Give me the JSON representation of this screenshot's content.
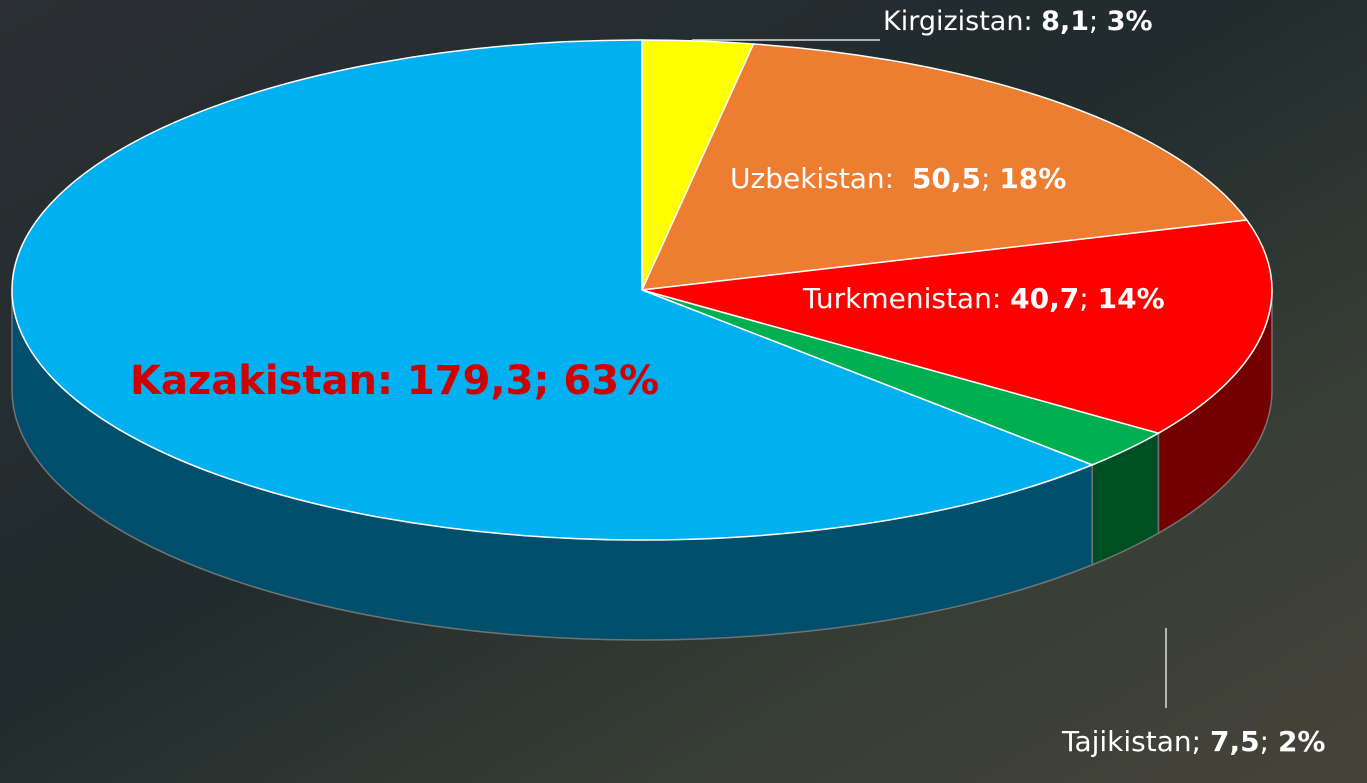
{
  "chart_data": {
    "type": "pie",
    "categories": [
      "Kirgizistan",
      "Uzbekistan",
      "Turkmenistan",
      "Tajikistan",
      "Kazakistan"
    ],
    "values": [
      8.1,
      50.5,
      40.7,
      7.5,
      179.3
    ],
    "value_labels": [
      "8,1",
      "50,5",
      "40,7",
      "7,5",
      "179,3"
    ],
    "percents": [
      3,
      18,
      14,
      2,
      63
    ],
    "percent_labels": [
      "3%",
      "18%",
      "14%",
      "2%",
      "63%"
    ],
    "label_separators": [
      [
        ": ",
        "; "
      ],
      [
        ":  ",
        "; "
      ],
      [
        ": ",
        "; "
      ],
      [
        "; ",
        "; "
      ],
      [
        ": ",
        "; "
      ]
    ],
    "colors": [
      "#ffff00",
      "#ed7d31",
      "#ff0000",
      "#00b050",
      "#00b0f0"
    ]
  }
}
